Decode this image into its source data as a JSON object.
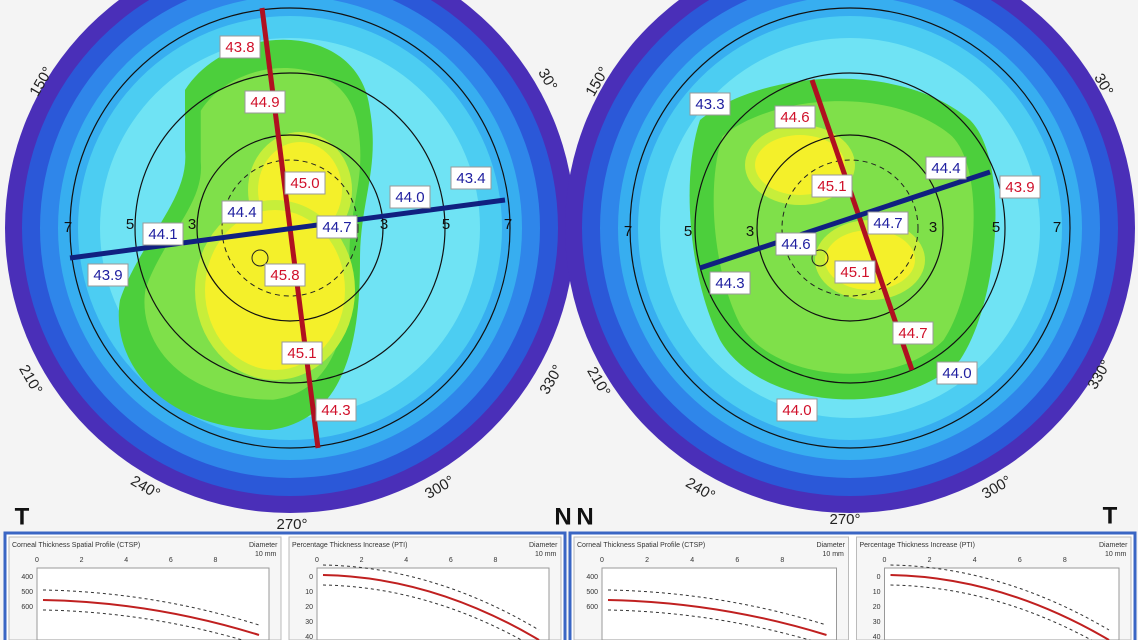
{
  "maps": [
    {
      "labels": [
        "43.8",
        "44.9",
        "45.0",
        "44.4",
        "44.7",
        "44.0",
        "43.4",
        "44.1",
        "43.9",
        "45.8",
        "45.1",
        "44.3"
      ],
      "rings": [
        "7",
        "5",
        "3",
        "3",
        "5",
        "7"
      ],
      "angles": [
        "150°",
        "30°",
        "210°",
        "330°",
        "240°",
        "300°",
        "270°"
      ],
      "left_side": "T",
      "right_side": "N"
    },
    {
      "labels": [
        "43.3",
        "44.6",
        "44.4",
        "45.1",
        "43.9",
        "44.7",
        "44.6",
        "44.3",
        "45.1",
        "44.7",
        "44.0",
        "44.0"
      ],
      "rings": [
        "7",
        "5",
        "3",
        "3",
        "5",
        "7"
      ],
      "angles": [
        "150°",
        "30°",
        "210°",
        "330°",
        "240°",
        "300°",
        "270°"
      ],
      "left_side": "N",
      "right_side": "T"
    }
  ],
  "panels": [
    {
      "ctsp": {
        "title": "Corneal Thickness Spatial Profile (CTSP)",
        "axis_label": "Diameter",
        "unit": "10 mm",
        "xticks": [
          "0",
          "2",
          "4",
          "6",
          "8"
        ],
        "yticks": [
          "400",
          "500",
          "600"
        ]
      },
      "pti": {
        "title": "Percentage Thickness Increase (PTI)",
        "axis_label": "Diameter",
        "unit": "10 mm",
        "xticks": [
          "0",
          "2",
          "4",
          "6",
          "8"
        ],
        "yticks": [
          "0",
          "10",
          "20",
          "30",
          "40"
        ]
      }
    },
    {
      "ctsp": {
        "title": "Corneal Thickness Spatial Profile (CTSP)",
        "axis_label": "Diameter",
        "unit": "10 mm",
        "xticks": [
          "0",
          "2",
          "4",
          "6",
          "8"
        ],
        "yticks": [
          "400",
          "500",
          "600"
        ]
      },
      "pti": {
        "title": "Percentage Thickness Increase (PTI)",
        "axis_label": "Diameter",
        "unit": "10 mm",
        "xticks": [
          "0",
          "2",
          "4",
          "6",
          "8"
        ],
        "yticks": [
          "0",
          "10",
          "20",
          "30",
          "40"
        ]
      }
    }
  ]
}
